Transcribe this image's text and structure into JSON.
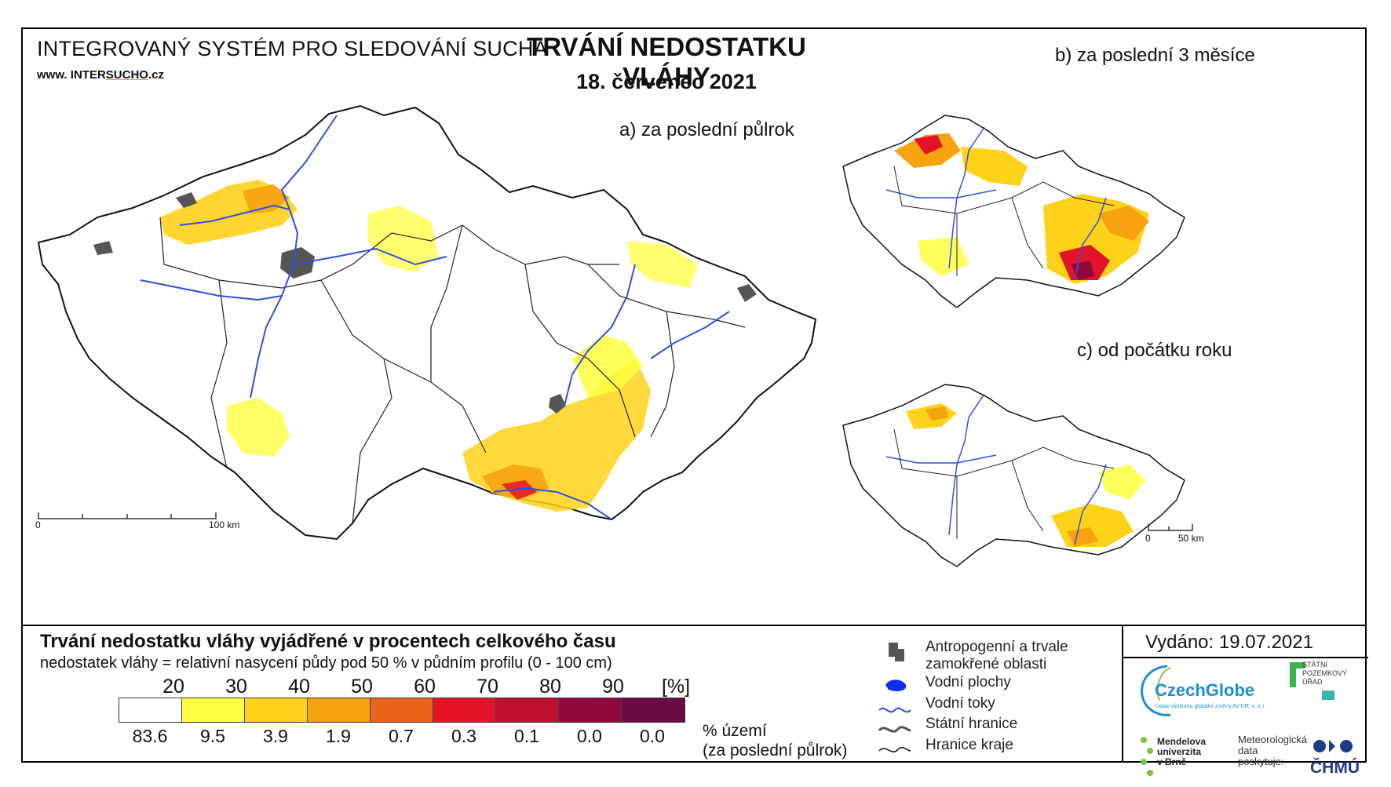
{
  "header": {
    "system_name": "INTEGROVANÝ SYSTÉM PRO SLEDOVÁNÍ SUCHA",
    "web_prefix": "www. INTER",
    "web_highlight": "SUCHO",
    "web_suffix": ".cz",
    "title": "TRVÁNÍ NEDOSTATKU VLÁHY",
    "date": "18. červenec 2021"
  },
  "maps": {
    "a_label": "a) za poslední půlrok",
    "b_label": "b) za poslední 3 měsíce",
    "c_label": "c) od počátku roku",
    "scale_main_zero": "0",
    "scale_main_end": "100 km",
    "scale_small_zero": "0",
    "scale_small_end": "50 km"
  },
  "legend": {
    "title": "Trvání nedostatku vláhy vyjádřené v procentech celkového času",
    "subtitle": "nedostatek vláhy = relativní nasycení půdy pod 50 % v půdním profilu (0 - 100 cm)",
    "thresholds": [
      "20",
      "30",
      "40",
      "50",
      "60",
      "70",
      "80",
      "90"
    ],
    "unit": "[%]",
    "colors": [
      "#ffffff",
      "#ffff40",
      "#ffd21a",
      "#f7a20f",
      "#e8641a",
      "#e3142a",
      "#bd0f2e",
      "#8e0a3a",
      "#6a0a45"
    ],
    "percent_area": [
      "83.6",
      "9.5",
      "3.9",
      "1.9",
      "0.7",
      "0.3",
      "0.1",
      "0.0",
      "0.0"
    ],
    "percent_label_1": "% území",
    "percent_label_2": "(za poslední půlrok)"
  },
  "map_legend": {
    "anthropogenic_1": "Antropogenní a trvale",
    "anthropogenic_2": "zamokřené oblasti",
    "water_bodies": "Vodní plochy",
    "rivers": "Vodní toky",
    "state_border": "Státní hranice",
    "region_border": "Hranice kraje"
  },
  "footer": {
    "issued": "Vydáno: 19.07.2021",
    "czechglobe": "CzechGlobe",
    "czechglobe_small": "Ústav výzkumu globální změny AV ČR, v. v. i.",
    "spu": [
      "STÁTNÍ",
      "POZEMKOVÝ",
      "ÚŘAD"
    ],
    "mendel": [
      "Mendelova",
      "univerzita",
      "v Brně"
    ],
    "meteo": [
      "Meteorologická",
      "data",
      "poskytuje:"
    ],
    "chmu": "ČHMÚ"
  }
}
